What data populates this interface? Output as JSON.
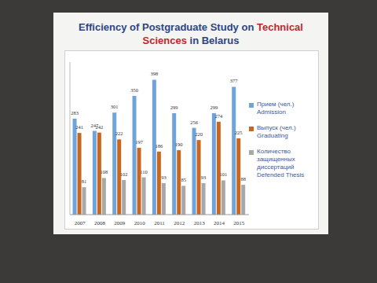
{
  "chart_data": {
    "type": "bar",
    "title": "Efficiency of Postgraduate Study on Technical Sciences in Belarus",
    "categories": [
      "2007",
      "2008",
      "2009",
      "2010",
      "2011",
      "2012",
      "2013",
      "2014",
      "2015"
    ],
    "series": [
      {
        "name": "Прием (чел.) Admission",
        "color": "#6fa3dc",
        "values": [
          283,
          247,
          301,
          350,
          398,
          299,
          256,
          299,
          377
        ]
      },
      {
        "name": "Выпуск (чел.) Graduating",
        "color": "#c8661f",
        "values": [
          241,
          242,
          222,
          197,
          186,
          190,
          220,
          274,
          225
        ]
      },
      {
        "name": "Количество защищенных диссертаций Defended Thesis",
        "color": "#a8a8a8",
        "values": [
          81,
          108,
          102,
          110,
          93,
          85,
          93,
          101,
          88
        ]
      }
    ],
    "ylim": [
      0,
      450
    ],
    "data_labels": true,
    "tick_labels": "x",
    "legend": "right"
  }
}
